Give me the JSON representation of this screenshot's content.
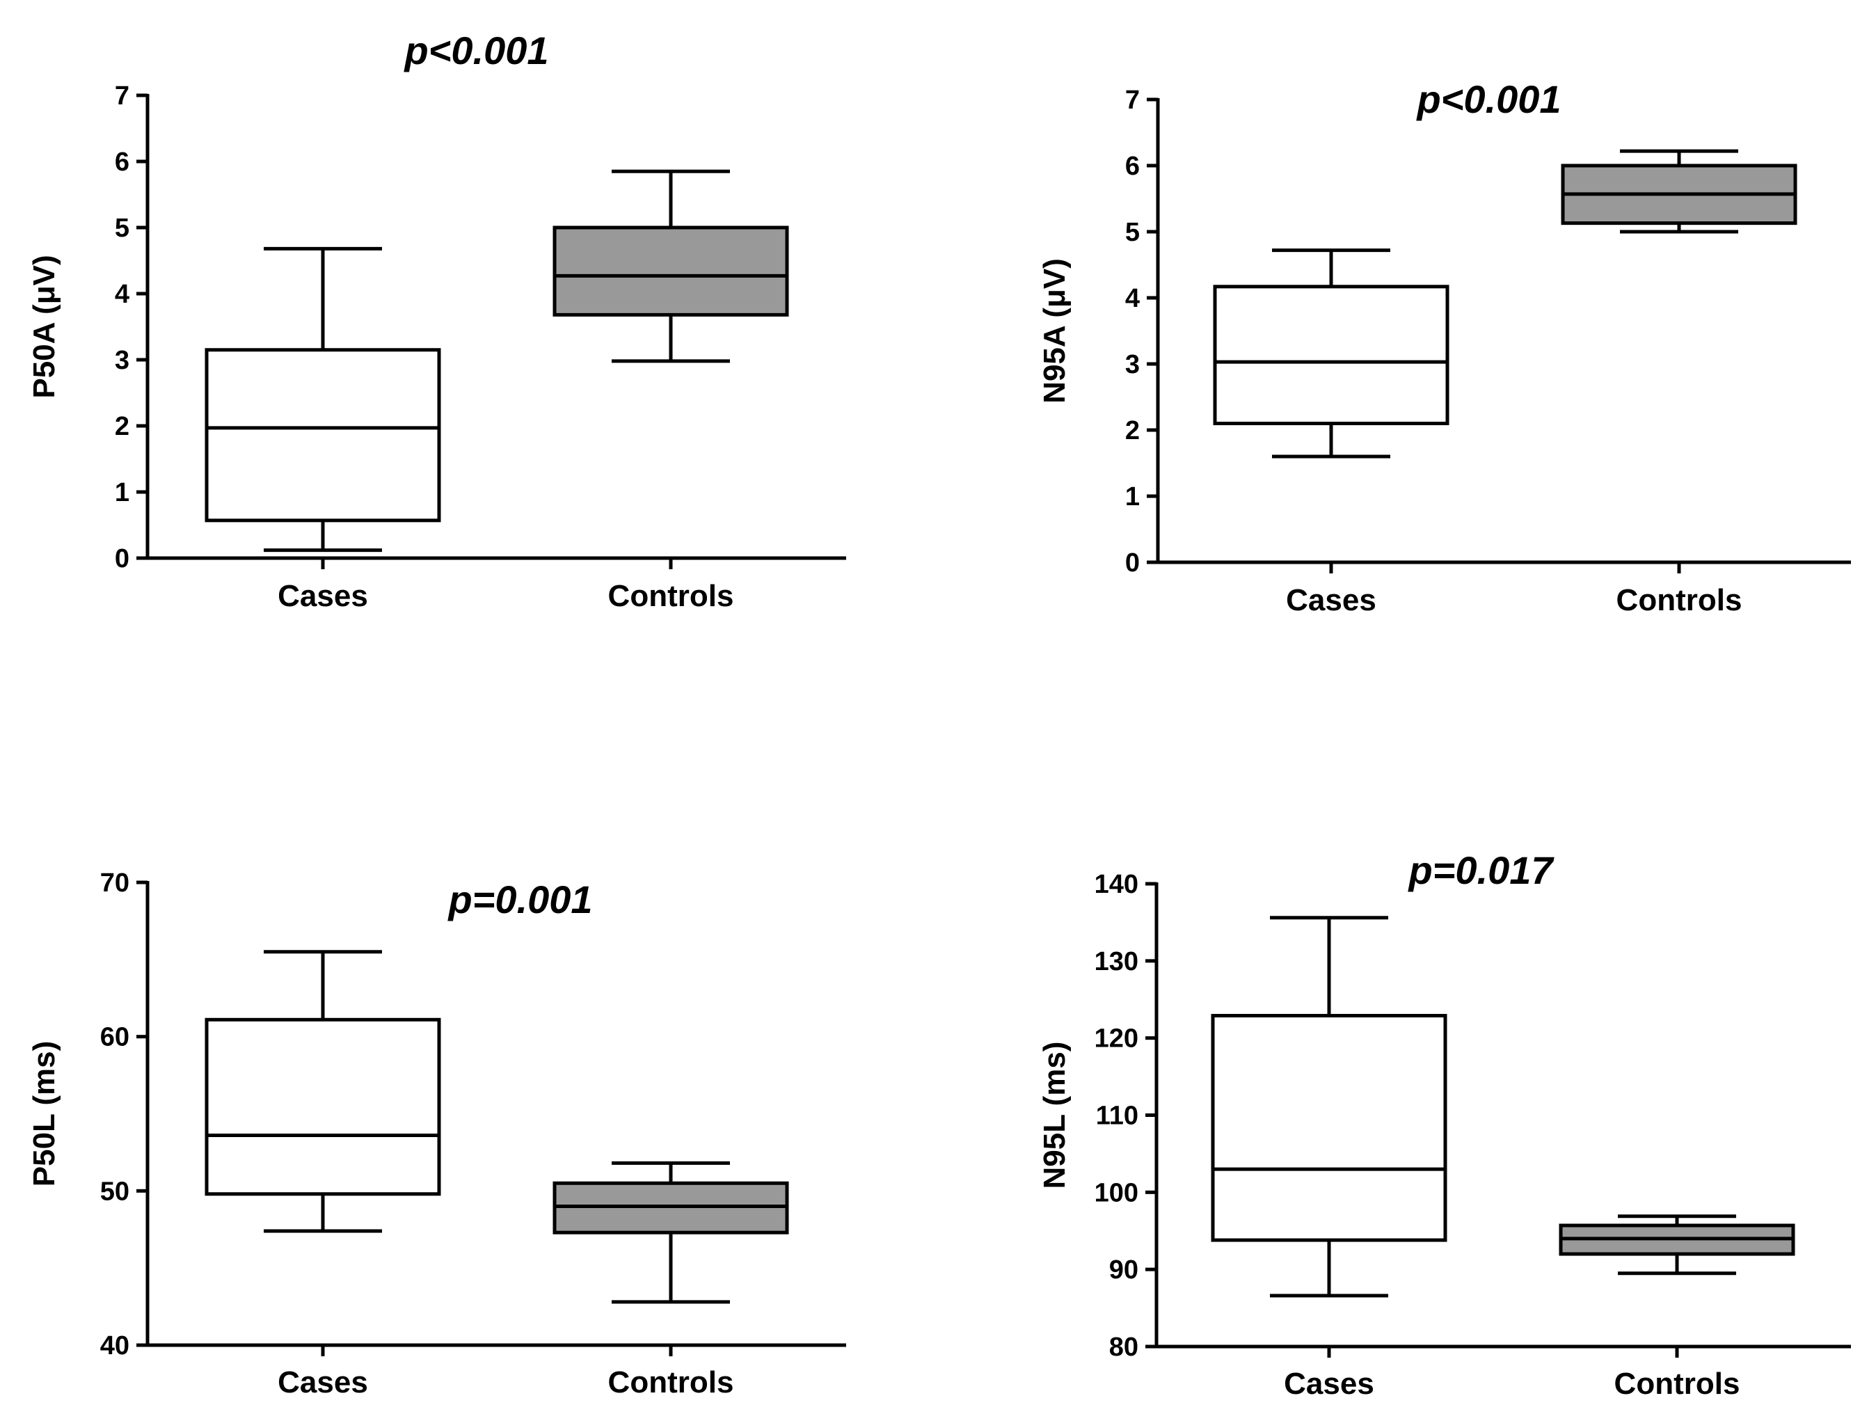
{
  "chart_data": [
    {
      "id": "p50a",
      "type": "box",
      "title": "p<0.001",
      "ylabel": "P50A (μV)",
      "xlabel": "",
      "ylim": [
        0,
        7
      ],
      "yticks": [
        0,
        1,
        2,
        3,
        4,
        5,
        6,
        7
      ],
      "categories": [
        "Cases",
        "Controls"
      ],
      "fill_colors": [
        "#ffffff",
        "#999999"
      ],
      "boxes": [
        {
          "category": "Cases",
          "whisker_low": 0.12,
          "q1": 0.57,
          "median": 1.97,
          "q3": 3.15,
          "whisker_high": 4.68
        },
        {
          "category": "Controls",
          "whisker_low": 2.98,
          "q1": 3.68,
          "median": 4.27,
          "q3": 5.0,
          "whisker_high": 5.85
        }
      ]
    },
    {
      "id": "n95a",
      "type": "box",
      "title": "p<0.001",
      "ylabel": "N95A (μV)",
      "xlabel": "",
      "ylim": [
        0,
        7
      ],
      "yticks": [
        0,
        1,
        2,
        3,
        4,
        5,
        6,
        7
      ],
      "categories": [
        "Cases",
        "Controls"
      ],
      "fill_colors": [
        "#ffffff",
        "#999999"
      ],
      "boxes": [
        {
          "category": "Cases",
          "whisker_low": 1.6,
          "q1": 2.1,
          "median": 3.03,
          "q3": 4.17,
          "whisker_high": 4.72
        },
        {
          "category": "Controls",
          "whisker_low": 5.0,
          "q1": 5.13,
          "median": 5.57,
          "q3": 6.0,
          "whisker_high": 6.22
        }
      ]
    },
    {
      "id": "p50l",
      "type": "box",
      "title": "p=0.001",
      "ylabel": "P50L (ms)",
      "xlabel": "",
      "ylim": [
        40,
        70
      ],
      "yticks": [
        40,
        50,
        60,
        70
      ],
      "categories": [
        "Cases",
        "Controls"
      ],
      "fill_colors": [
        "#ffffff",
        "#999999"
      ],
      "boxes": [
        {
          "category": "Cases",
          "whisker_low": 47.4,
          "q1": 49.8,
          "median": 53.6,
          "q3": 61.1,
          "whisker_high": 65.5
        },
        {
          "category": "Controls",
          "whisker_low": 42.8,
          "q1": 47.3,
          "median": 49.0,
          "q3": 50.5,
          "whisker_high": 51.8
        }
      ]
    },
    {
      "id": "n95l",
      "type": "box",
      "title": "p=0.017",
      "ylabel": "N95L (ms)",
      "xlabel": "",
      "ylim": [
        80,
        140
      ],
      "yticks": [
        80,
        90,
        100,
        110,
        120,
        130,
        140
      ],
      "categories": [
        "Cases",
        "Controls"
      ],
      "fill_colors": [
        "#ffffff",
        "#999999"
      ],
      "boxes": [
        {
          "category": "Cases",
          "whisker_low": 86.6,
          "q1": 93.8,
          "median": 103.0,
          "q3": 122.9,
          "whisker_high": 135.6
        },
        {
          "category": "Controls",
          "whisker_low": 89.5,
          "q1": 92.0,
          "median": 94.0,
          "q3": 95.7,
          "whisker_high": 96.9
        }
      ]
    }
  ]
}
